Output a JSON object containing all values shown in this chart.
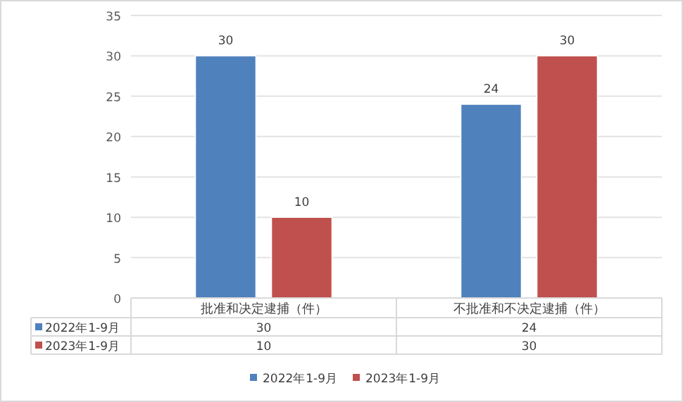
{
  "chart_data": {
    "type": "bar",
    "categories": [
      "批准和决定逮捕（件）",
      "不批准和不决定逮捕（件）"
    ],
    "series": [
      {
        "name": "2022年1-9月",
        "color": "#4f81bd",
        "values": [
          30,
          24
        ],
        "value_labels": [
          "30",
          "24"
        ]
      },
      {
        "name": "2023年1-9月",
        "color": "#c0504d",
        "values": [
          10,
          30
        ],
        "value_labels": [
          "10",
          "30"
        ]
      }
    ],
    "ylim": [
      0,
      35
    ],
    "yticks": [
      0,
      5,
      10,
      15,
      20,
      25,
      30,
      35
    ],
    "grid": "y",
    "legend": "bottom"
  }
}
